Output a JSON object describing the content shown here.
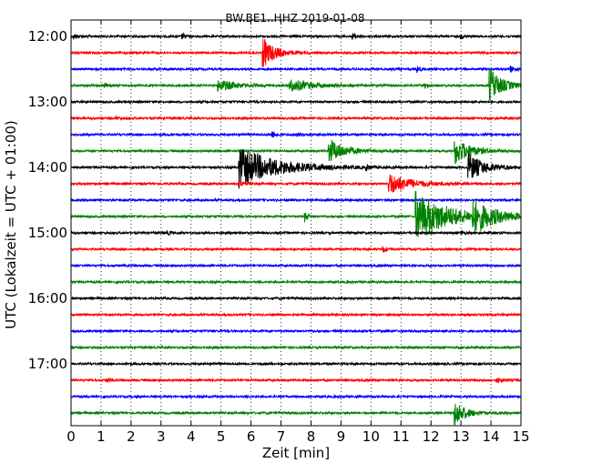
{
  "chart_data": {
    "type": "line",
    "title": "BW.BE1..HHZ 2019-01-08",
    "xlabel": "Zeit  [min]",
    "ylabel": "UTC (Lokalzeit = UTC + 01:00)",
    "xlim": [
      0,
      15
    ],
    "x_ticks": [
      "0",
      "1",
      "2",
      "3",
      "4",
      "5",
      "6",
      "7",
      "8",
      "9",
      "10",
      "11",
      "12",
      "13",
      "14",
      "15"
    ],
    "y_ticks": [
      {
        "time": "12:00",
        "label": "12:00"
      },
      {
        "time": "13:00",
        "label": "13:00"
      },
      {
        "time": "14:00",
        "label": "14:00"
      },
      {
        "time": "15:00",
        "label": "15:00"
      },
      {
        "time": "16:00",
        "label": "16:00"
      },
      {
        "time": "17:00",
        "label": "17:00"
      }
    ],
    "grid": "vertical dotted",
    "color_cycle": [
      "#000000",
      "#ff0000",
      "#0000ff",
      "#008000"
    ],
    "series": [
      {
        "start": "12:00",
        "color": "#000000",
        "events": [
          {
            "t": 0.1,
            "amp": 0.3,
            "dur": 0.15
          },
          {
            "t": 3.7,
            "amp": 0.3,
            "dur": 0.15
          },
          {
            "t": 9.4,
            "amp": 0.35,
            "dur": 0.15
          },
          {
            "t": 13.0,
            "amp": 0.2,
            "dur": 0.1
          }
        ]
      },
      {
        "start": "12:15",
        "color": "#ff0000",
        "events": [
          {
            "t": 6.4,
            "amp": 1.8,
            "dur": 0.4
          }
        ]
      },
      {
        "start": "12:30",
        "color": "#0000ff",
        "events": [
          {
            "t": 11.55,
            "amp": 0.4,
            "dur": 0.1
          },
          {
            "t": 14.65,
            "amp": 0.4,
            "dur": 0.1
          }
        ]
      },
      {
        "start": "12:45",
        "color": "#008000",
        "events": [
          {
            "t": 1.1,
            "amp": 0.3,
            "dur": 0.1
          },
          {
            "t": 4.9,
            "amp": 0.7,
            "dur": 0.6
          },
          {
            "t": 7.3,
            "amp": 0.75,
            "dur": 0.7
          },
          {
            "t": 11.8,
            "amp": 0.35,
            "dur": 0.1
          },
          {
            "t": 13.95,
            "amp": 2.1,
            "dur": 0.4
          }
        ]
      },
      {
        "start": "13:00",
        "color": "#000000",
        "events": []
      },
      {
        "start": "13:15",
        "color": "#ff0000",
        "events": [
          {
            "t": 1.5,
            "amp": 0.25,
            "dur": 0.1
          }
        ]
      },
      {
        "start": "13:30",
        "color": "#0000ff",
        "events": [
          {
            "t": 6.7,
            "amp": 0.4,
            "dur": 0.15
          },
          {
            "t": 7.5,
            "amp": 0.2,
            "dur": 0.3
          }
        ]
      },
      {
        "start": "13:45",
        "color": "#008000",
        "events": [
          {
            "t": 8.6,
            "amp": 1.5,
            "dur": 0.5
          },
          {
            "t": 12.8,
            "amp": 1.6,
            "dur": 0.5
          }
        ]
      },
      {
        "start": "14:00",
        "color": "#000000",
        "events": [
          {
            "t": 5.6,
            "amp": 2.5,
            "dur": 1.2
          },
          {
            "t": 9.85,
            "amp": 0.3,
            "dur": 0.1
          },
          {
            "t": 13.25,
            "amp": 1.7,
            "dur": 0.5
          }
        ]
      },
      {
        "start": "14:15",
        "color": "#ff0000",
        "events": [
          {
            "t": 5.6,
            "amp": 0.4,
            "dur": 0.2
          },
          {
            "t": 10.6,
            "amp": 1.3,
            "dur": 0.7
          }
        ]
      },
      {
        "start": "14:30",
        "color": "#0000ff",
        "events": []
      },
      {
        "start": "14:45",
        "color": "#008000",
        "events": [
          {
            "t": 7.8,
            "amp": 0.6,
            "dur": 0.1
          },
          {
            "t": 11.5,
            "amp": 3.0,
            "dur": 1.1
          },
          {
            "t": 13.4,
            "amp": 1.6,
            "dur": 0.7
          }
        ]
      },
      {
        "start": "15:00",
        "color": "#000000",
        "events": [
          {
            "t": 3.2,
            "amp": 0.2,
            "dur": 0.15
          },
          {
            "t": 13.0,
            "amp": 0.2,
            "dur": 0.15
          }
        ]
      },
      {
        "start": "15:15",
        "color": "#ff0000",
        "events": [
          {
            "t": 10.4,
            "amp": 0.4,
            "dur": 0.1
          }
        ]
      },
      {
        "start": "15:30",
        "color": "#0000ff",
        "events": []
      },
      {
        "start": "15:45",
        "color": "#008000",
        "events": []
      },
      {
        "start": "16:00",
        "color": "#000000",
        "events": []
      },
      {
        "start": "16:15",
        "color": "#ff0000",
        "events": []
      },
      {
        "start": "16:30",
        "color": "#0000ff",
        "events": []
      },
      {
        "start": "16:45",
        "color": "#008000",
        "events": []
      },
      {
        "start": "17:00",
        "color": "#000000",
        "events": []
      },
      {
        "start": "17:15",
        "color": "#ff0000",
        "events": [
          {
            "t": 1.2,
            "amp": 0.2,
            "dur": 0.1
          },
          {
            "t": 14.2,
            "amp": 0.3,
            "dur": 0.2
          }
        ]
      },
      {
        "start": "17:30",
        "color": "#0000ff",
        "events": []
      },
      {
        "start": "17:45",
        "color": "#008000",
        "events": [
          {
            "t": 12.8,
            "amp": 1.5,
            "dur": 0.35
          }
        ]
      }
    ]
  }
}
